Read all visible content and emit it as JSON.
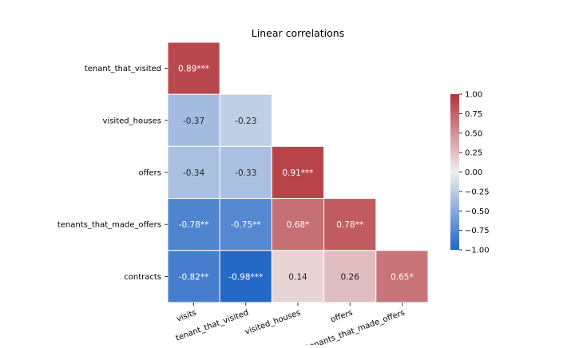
{
  "chart_data": {
    "type": "heatmap",
    "title": "Linear correlations",
    "row_labels": [
      "tenant_that_visited",
      "visited_houses",
      "offers",
      "tenants_that_made_offers",
      "contracts"
    ],
    "col_labels": [
      "visits",
      "tenant_that_visited",
      "visited_houses",
      "offers",
      "tenants_that_made_offers"
    ],
    "values": [
      [
        0.89,
        null,
        null,
        null,
        null
      ],
      [
        -0.37,
        -0.23,
        null,
        null,
        null
      ],
      [
        -0.34,
        -0.33,
        0.91,
        null,
        null
      ],
      [
        -0.78,
        -0.75,
        0.68,
        0.78,
        null
      ],
      [
        -0.82,
        -0.98,
        0.14,
        0.26,
        0.65
      ]
    ],
    "annotations": [
      [
        "0.89***",
        null,
        null,
        null,
        null
      ],
      [
        "-0.37",
        "-0.23",
        null,
        null,
        null
      ],
      [
        "-0.34",
        "-0.33",
        "0.91***",
        null,
        null
      ],
      [
        "-0.78**",
        "-0.75**",
        "0.68*",
        "0.78**",
        null
      ],
      [
        "-0.82**",
        "-0.98***",
        "0.14",
        "0.26",
        "0.65*"
      ]
    ],
    "colorbar": {
      "vmin": -1.0,
      "vmax": 1.0,
      "ticks": [
        "1.00",
        "0.75",
        "0.50",
        "0.25",
        "0.00",
        "−0.25",
        "−0.50",
        "−0.75",
        "−1.00"
      ]
    },
    "colormap": {
      "low": "#2166c6",
      "mid": "#f0eeee",
      "high": "#b2333a"
    },
    "xlabel": "",
    "ylabel": "",
    "xtick_rotation": "rotated ~20 degrees"
  }
}
